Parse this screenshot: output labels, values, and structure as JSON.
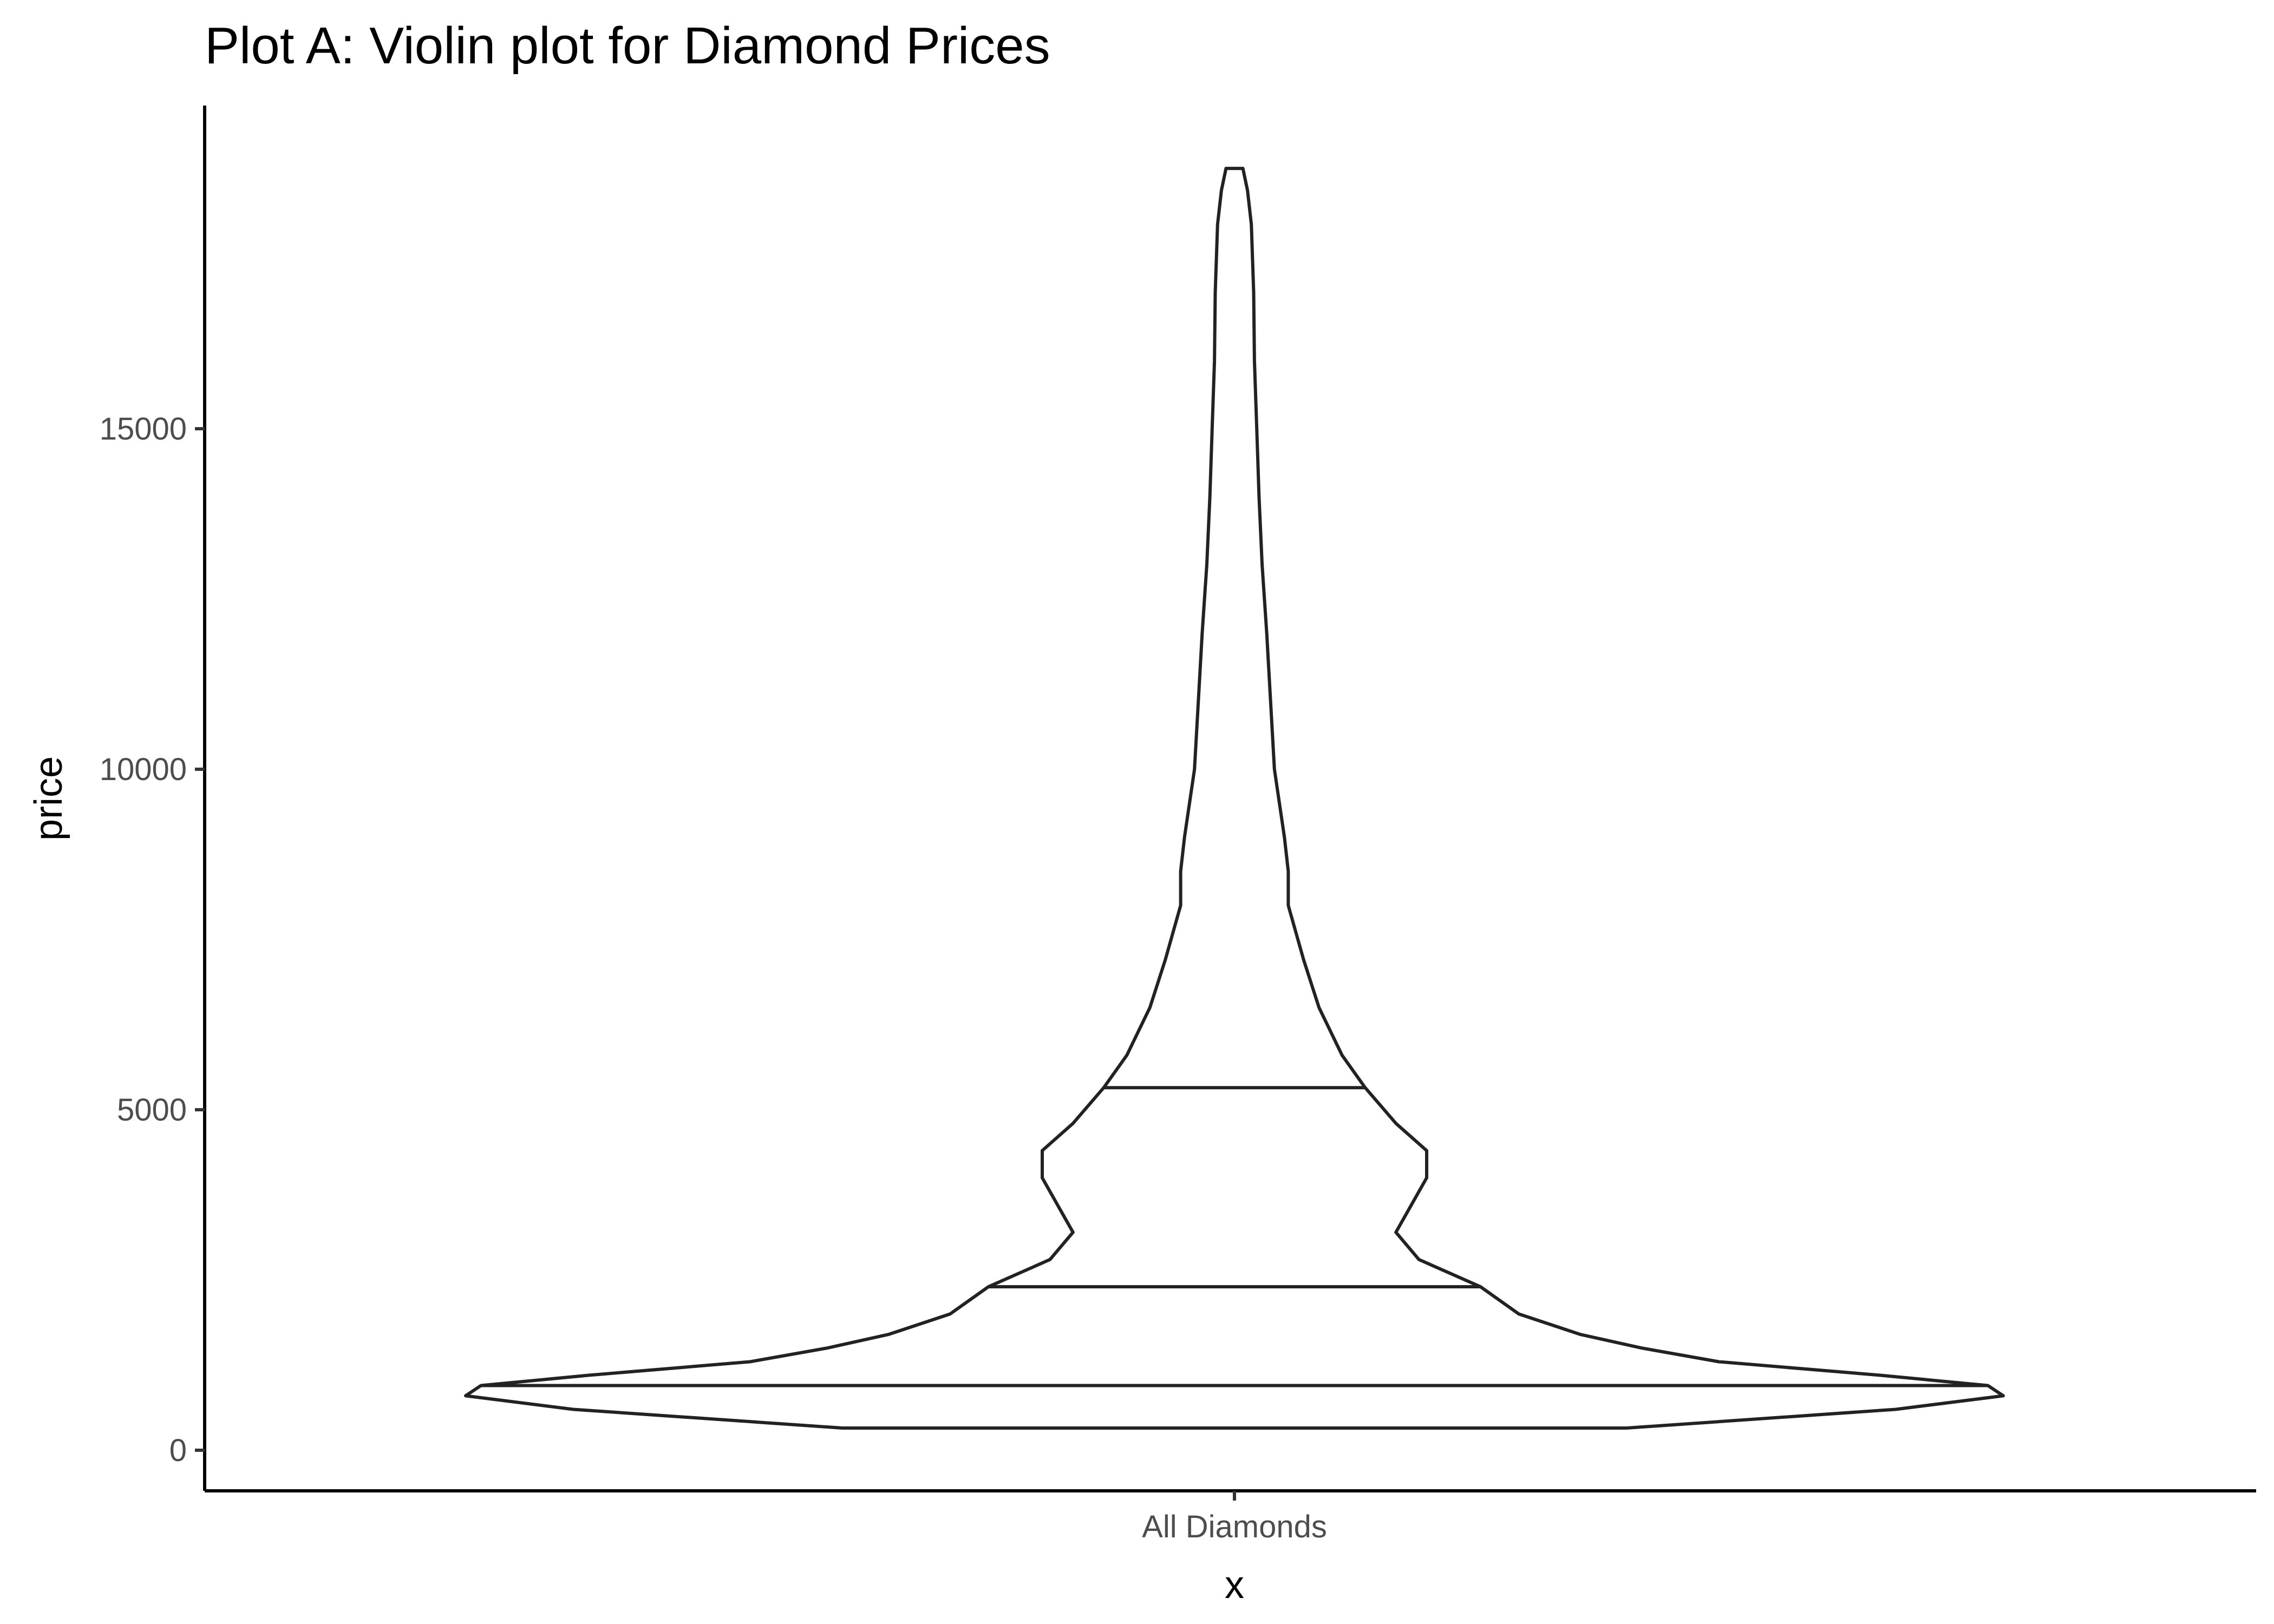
{
  "chart_data": {
    "type": "violin",
    "title": "Plot A: Violin plot for Diamond Prices",
    "xlabel": "x",
    "ylabel": "price",
    "categories": [
      "All Diamonds"
    ],
    "y_ticks": [
      0,
      5000,
      10000,
      15000
    ],
    "ylim": [
      -500,
      19500
    ],
    "grid": false,
    "legend": "none",
    "colors": {
      "outline": "#222222",
      "fill": "#ffffff",
      "axis": "#000000",
      "tick_text": "#4d4d4d"
    },
    "density_max_half_width": 1.0,
    "density_profile": [
      {
        "price": 326,
        "width": 0.51
      },
      {
        "price": 600,
        "width": 0.86
      },
      {
        "price": 800,
        "width": 1.0
      },
      {
        "price": 950,
        "width": 0.98
      },
      {
        "price": 1101,
        "width": 0.84
      },
      {
        "price": 1300,
        "width": 0.63
      },
      {
        "price": 1500,
        "width": 0.53
      },
      {
        "price": 1700,
        "width": 0.45
      },
      {
        "price": 2000,
        "width": 0.37
      },
      {
        "price": 2401,
        "width": 0.32
      },
      {
        "price": 2800,
        "width": 0.24
      },
      {
        "price": 3200,
        "width": 0.21
      },
      {
        "price": 3600,
        "width": 0.23
      },
      {
        "price": 4000,
        "width": 0.25
      },
      {
        "price": 4400,
        "width": 0.25
      },
      {
        "price": 4800,
        "width": 0.21
      },
      {
        "price": 5324,
        "width": 0.17
      },
      {
        "price": 5800,
        "width": 0.14
      },
      {
        "price": 6500,
        "width": 0.11
      },
      {
        "price": 7200,
        "width": 0.09
      },
      {
        "price": 8000,
        "width": 0.07
      },
      {
        "price": 8500,
        "width": 0.07
      },
      {
        "price": 9000,
        "width": 0.065
      },
      {
        "price": 10000,
        "width": 0.052
      },
      {
        "price": 11000,
        "width": 0.047
      },
      {
        "price": 12000,
        "width": 0.042
      },
      {
        "price": 13000,
        "width": 0.036
      },
      {
        "price": 14000,
        "width": 0.032
      },
      {
        "price": 15000,
        "width": 0.029
      },
      {
        "price": 16000,
        "width": 0.026
      },
      {
        "price": 17000,
        "width": 0.025
      },
      {
        "price": 18000,
        "width": 0.022
      },
      {
        "price": 18500,
        "width": 0.017
      },
      {
        "price": 18823,
        "width": 0.011
      }
    ],
    "quantile_lines": [
      {
        "label": "min",
        "price": 326
      },
      {
        "label": "25%",
        "price": 950
      },
      {
        "label": "50%",
        "price": 2401
      },
      {
        "label": "75%",
        "price": 5324
      }
    ]
  }
}
